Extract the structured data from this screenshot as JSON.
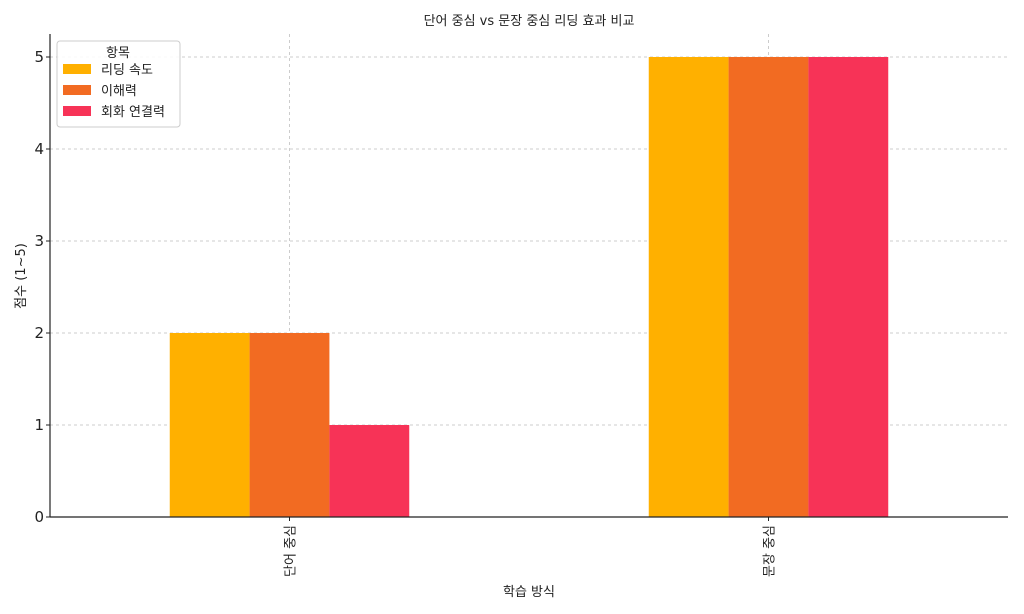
{
  "chart_data": {
    "type": "bar",
    "title": "단어 중심 vs 문장 중심 리딩 효과 비교",
    "xlabel": "학습 방식",
    "ylabel": "점수 (1~5)",
    "categories": [
      "단어 중심",
      "문장 중심"
    ],
    "ylim": [
      0,
      5.25
    ],
    "yticks": [
      0,
      1,
      2,
      3,
      4,
      5
    ],
    "grid": true,
    "legend": {
      "title": "항목",
      "placement": "top-left"
    },
    "series": [
      {
        "name": "리딩 속도",
        "values": [
          2,
          5
        ],
        "color": "#FFB000"
      },
      {
        "name": "이해력",
        "values": [
          2,
          5
        ],
        "color": "#F26B22"
      },
      {
        "name": "회화 연결력",
        "values": [
          1,
          5
        ],
        "color": "#F73357"
      }
    ]
  }
}
